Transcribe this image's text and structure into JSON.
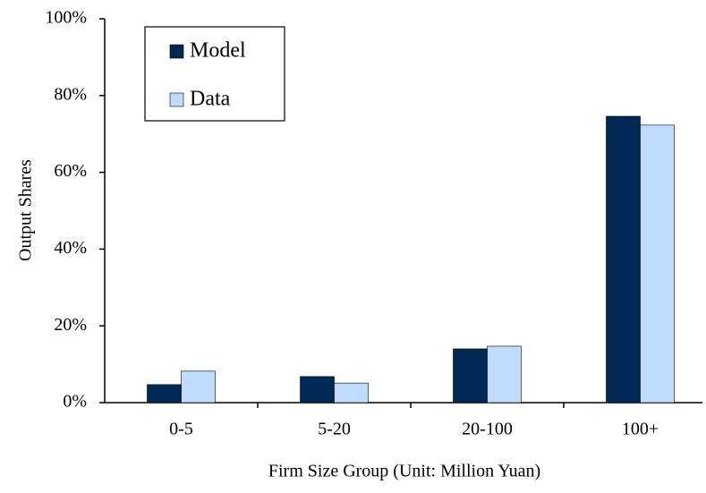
{
  "chart_data": {
    "type": "bar",
    "xlabel": "Firm Size Group (Unit: Million Yuan)",
    "ylabel": "Output Shares",
    "categories": [
      "0-5",
      "5-20",
      "20-100",
      "100+"
    ],
    "series": [
      {
        "name": "Model",
        "color": "#002855",
        "values": [
          4.7,
          6.8,
          14.0,
          74.6
        ]
      },
      {
        "name": "Data",
        "color": "#bfdcff",
        "values": [
          8.2,
          5.1,
          14.7,
          72.3
        ]
      }
    ],
    "ylim": [
      0,
      100
    ],
    "yticks": [
      {
        "value": 0,
        "label": "0%"
      },
      {
        "value": 20,
        "label": "20%"
      },
      {
        "value": 40,
        "label": "40%"
      },
      {
        "value": 60,
        "label": "60%"
      },
      {
        "value": 80,
        "label": "80%"
      },
      {
        "value": 100,
        "label": "100%"
      }
    ],
    "legend": "upper left",
    "grid": false
  }
}
